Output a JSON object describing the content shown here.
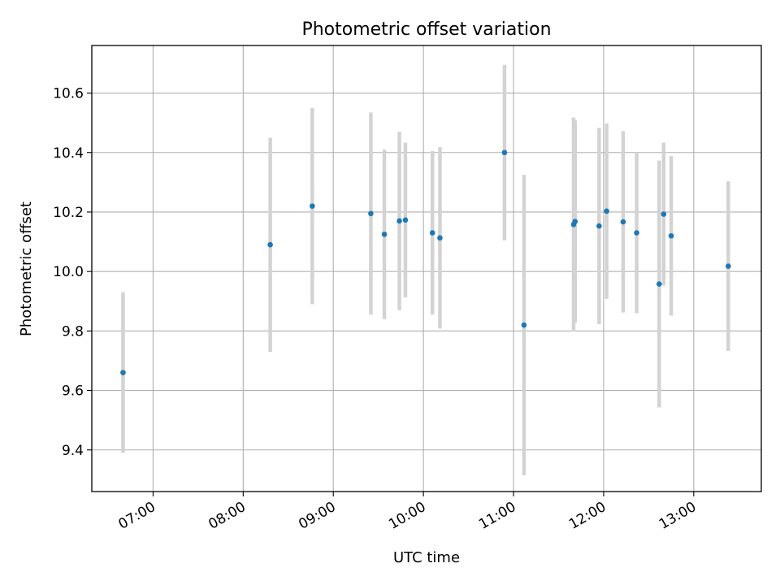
{
  "chart_data": {
    "type": "scatter",
    "title": "Photometric offset variation",
    "xlabel": "UTC time",
    "ylabel": "Photometric offset",
    "grid": true,
    "x_unit": "UTC time (hours)",
    "xlim": [
      6.32,
      13.75
    ],
    "ylim": [
      9.26,
      10.76
    ],
    "xticks": [
      {
        "value": 7,
        "label": "07:00"
      },
      {
        "value": 8,
        "label": "08:00"
      },
      {
        "value": 9,
        "label": "09:00"
      },
      {
        "value": 10,
        "label": "10:00"
      },
      {
        "value": 11,
        "label": "11:00"
      },
      {
        "value": 12,
        "label": "12:00"
      },
      {
        "value": 13,
        "label": "13:00"
      }
    ],
    "yticks": [
      {
        "value": 9.4,
        "label": "9.4"
      },
      {
        "value": 9.6,
        "label": "9.6"
      },
      {
        "value": 9.8,
        "label": "9.8"
      },
      {
        "value": 10.0,
        "label": "10.0"
      },
      {
        "value": 10.2,
        "label": "10.2"
      },
      {
        "value": 10.4,
        "label": "10.4"
      },
      {
        "value": 10.6,
        "label": "10.6"
      }
    ],
    "point_color": "#1f77b4",
    "errorbar_color": "#d3d3d3",
    "points": [
      {
        "time": "06:40",
        "y": 9.66,
        "err": 0.27
      },
      {
        "time": "08:18",
        "y": 10.09,
        "err": 0.36
      },
      {
        "time": "08:46",
        "y": 10.22,
        "err": 0.33
      },
      {
        "time": "09:25",
        "y": 10.195,
        "err": 0.34
      },
      {
        "time": "09:34",
        "y": 10.125,
        "err": 0.285
      },
      {
        "time": "09:44",
        "y": 10.17,
        "err": 0.3
      },
      {
        "time": "09:48",
        "y": 10.173,
        "err": 0.26
      },
      {
        "time": "10:06",
        "y": 10.13,
        "err": 0.275
      },
      {
        "time": "10:11",
        "y": 10.113,
        "err": 0.305
      },
      {
        "time": "10:54",
        "y": 10.4,
        "err": 0.295
      },
      {
        "time": "11:07",
        "y": 9.82,
        "err": 0.505
      },
      {
        "time": "11:40",
        "y": 10.158,
        "err": 0.36
      },
      {
        "time": "11:41",
        "y": 10.168,
        "err": 0.34
      },
      {
        "time": "11:57",
        "y": 10.153,
        "err": 0.33
      },
      {
        "time": "12:02",
        "y": 10.203,
        "err": 0.295
      },
      {
        "time": "12:13",
        "y": 10.167,
        "err": 0.305
      },
      {
        "time": "12:22",
        "y": 10.13,
        "err": 0.27
      },
      {
        "time": "12:37",
        "y": 9.958,
        "err": 0.415
      },
      {
        "time": "12:40",
        "y": 10.193,
        "err": 0.24
      },
      {
        "time": "12:45",
        "y": 10.12,
        "err": 0.268
      },
      {
        "time": "13:23",
        "y": 10.018,
        "err": 0.285
      }
    ]
  }
}
